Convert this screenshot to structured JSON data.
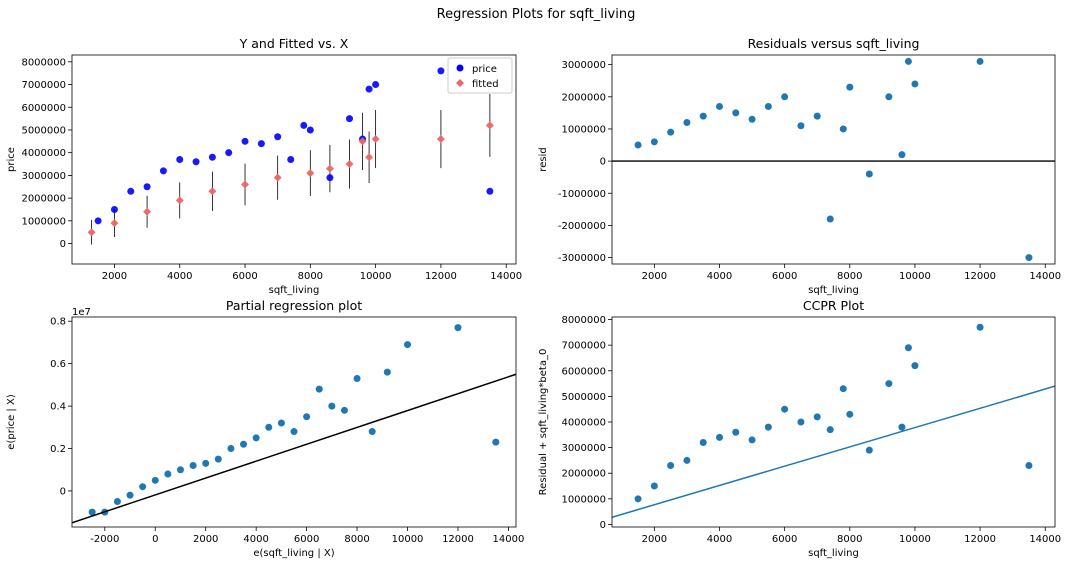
{
  "figure": {
    "suptitle": "Regression Plots for sqft_living"
  },
  "chart_data": [
    {
      "type": "scatter",
      "title": "Y and Fitted vs. X",
      "xlabel": "sqft_living",
      "ylabel": "price",
      "xlim": [
        700,
        14300
      ],
      "ylim": [
        -900000,
        8300000
      ],
      "xticks": [
        2000,
        4000,
        6000,
        8000,
        10000,
        12000,
        14000
      ],
      "yticks": [
        0,
        1000000,
        2000000,
        3000000,
        4000000,
        5000000,
        6000000,
        7000000,
        8000000
      ],
      "legend": {
        "position": "top-right",
        "entries": [
          "price",
          "fitted"
        ]
      },
      "series": [
        {
          "name": "price",
          "color": "#0000ff",
          "x": [
            1500,
            2000,
            2500,
            3000,
            3500,
            4000,
            4500,
            5000,
            5500,
            6000,
            6500,
            7000,
            7400,
            7800,
            8000,
            8600,
            9200,
            9600,
            9800,
            10000,
            12000,
            13500
          ],
          "y": [
            1000000,
            1500000,
            2300000,
            2500000,
            3200000,
            3700000,
            3600000,
            3800000,
            4000000,
            4500000,
            4400000,
            4700000,
            3700000,
            5200000,
            5000000,
            2900000,
            5500000,
            4600000,
            6800000,
            7000000,
            7600000,
            2300000
          ]
        },
        {
          "name": "fitted",
          "color": "#ee6666",
          "x": [
            1300,
            2000,
            3000,
            4000,
            5000,
            6000,
            7000,
            8000,
            8600,
            9200,
            9600,
            9800,
            10000,
            12000,
            13500
          ],
          "y": [
            500000,
            900000,
            1400000,
            1900000,
            2300000,
            2600000,
            2900000,
            3100000,
            3300000,
            3500000,
            4500000,
            3800000,
            4600000,
            4600000,
            5200000
          ]
        }
      ]
    },
    {
      "type": "scatter",
      "title": "Residuals versus sqft_living",
      "xlabel": "sqft_living",
      "ylabel": "resid",
      "xlim": [
        700,
        14300
      ],
      "ylim": [
        -3200000,
        3300000
      ],
      "xticks": [
        2000,
        4000,
        6000,
        8000,
        10000,
        12000,
        14000
      ],
      "yticks": [
        -3000000,
        -2000000,
        -1000000,
        0,
        1000000,
        2000000,
        3000000
      ],
      "hline": 0,
      "series": [
        {
          "color": "#1f77b4",
          "x": [
            1500,
            2000,
            2500,
            3000,
            3500,
            4000,
            4500,
            5000,
            5500,
            6000,
            6500,
            7000,
            7400,
            7800,
            8000,
            8600,
            9200,
            9600,
            9800,
            10000,
            12000,
            13500
          ],
          "y": [
            500000,
            600000,
            900000,
            1200000,
            1400000,
            1700000,
            1500000,
            1300000,
            1700000,
            2000000,
            1100000,
            1400000,
            -1800000,
            1000000,
            2300000,
            -400000,
            2000000,
            200000,
            3100000,
            2400000,
            3100000,
            -3000000
          ]
        }
      ]
    },
    {
      "type": "scatter",
      "title": "Partial regression plot",
      "xlabel": "e(sqft_living | X)",
      "ylabel": "e(price | X)",
      "offset_text": "1e7",
      "xlim": [
        -3300,
        14300
      ],
      "ylim": [
        -0.17,
        0.82
      ],
      "xticks": [
        -2000,
        0,
        2000,
        4000,
        6000,
        8000,
        10000,
        12000,
        14000
      ],
      "yticks": [
        0.0,
        0.2,
        0.4,
        0.6,
        0.8
      ],
      "fit_line": {
        "x": [
          -3300,
          14300
        ],
        "y": [
          -0.15,
          0.55
        ]
      },
      "series": [
        {
          "color": "#1f77b4",
          "x": [
            -2500,
            -2000,
            -1500,
            -1000,
            -500,
            0,
            500,
            1000,
            1500,
            2000,
            2500,
            3000,
            3500,
            4000,
            4500,
            5000,
            5500,
            6000,
            6500,
            7000,
            7500,
            8000,
            8600,
            9200,
            10000,
            12000,
            13500
          ],
          "y": [
            -0.1,
            -0.1,
            -0.05,
            -0.02,
            0.02,
            0.05,
            0.08,
            0.1,
            0.12,
            0.13,
            0.15,
            0.2,
            0.22,
            0.25,
            0.3,
            0.32,
            0.28,
            0.35,
            0.48,
            0.4,
            0.38,
            0.53,
            0.28,
            0.56,
            0.69,
            0.77,
            0.23
          ]
        }
      ]
    },
    {
      "type": "scatter",
      "title": "CCPR Plot",
      "xlabel": "sqft_living",
      "ylabel": "Residual + sqft_living*beta_0",
      "xlim": [
        700,
        14300
      ],
      "ylim": [
        -100000,
        8100000
      ],
      "xticks": [
        2000,
        4000,
        6000,
        8000,
        10000,
        12000,
        14000
      ],
      "yticks": [
        0,
        1000000,
        2000000,
        3000000,
        4000000,
        5000000,
        6000000,
        7000000,
        8000000
      ],
      "fit_line": {
        "x": [
          700,
          14300
        ],
        "y": [
          280000,
          5400000
        ]
      },
      "series": [
        {
          "color": "#1f77b4",
          "x": [
            1500,
            2000,
            2500,
            3000,
            3500,
            4000,
            4500,
            5000,
            5500,
            6000,
            6500,
            7000,
            7400,
            7800,
            8000,
            8600,
            9200,
            9600,
            9800,
            10000,
            12000,
            13500
          ],
          "y": [
            1000000,
            1500000,
            2300000,
            2500000,
            3200000,
            3400000,
            3600000,
            3300000,
            3800000,
            4500000,
            4000000,
            4200000,
            3700000,
            5300000,
            4300000,
            2900000,
            5500000,
            3800000,
            6900000,
            6200000,
            7700000,
            2300000
          ]
        }
      ]
    }
  ]
}
